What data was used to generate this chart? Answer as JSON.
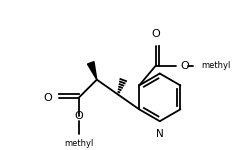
{
  "bg": "#ffffff",
  "lc": "#000000",
  "lw": 1.3,
  "fw": 2.51,
  "fh": 1.5,
  "dpi": 100,
  "N_label": "N",
  "O_label": "O",
  "Me_label": "methyl"
}
